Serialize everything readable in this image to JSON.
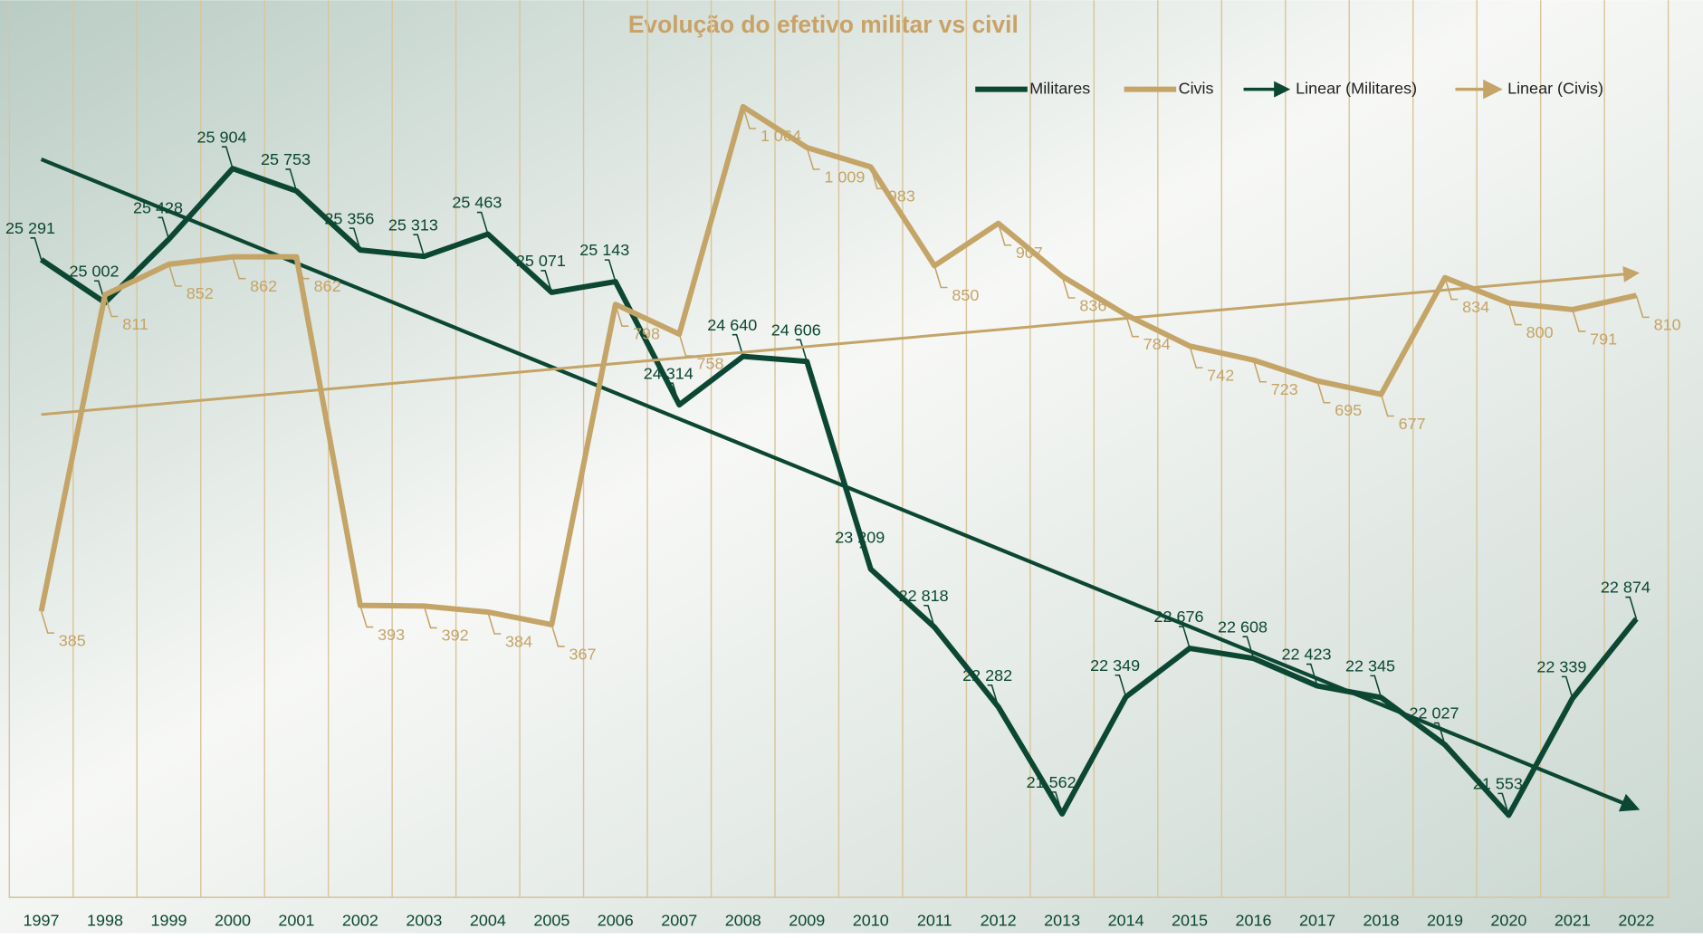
{
  "chart_data": {
    "type": "line",
    "title": "Evolução do efetivo militar vs civil",
    "categories": [
      "1997",
      "1998",
      "1999",
      "2000",
      "2001",
      "2002",
      "2003",
      "2004",
      "2005",
      "2006",
      "2007",
      "2008",
      "2009",
      "2010",
      "2011",
      "2012",
      "2013",
      "2014",
      "2015",
      "2016",
      "2017",
      "2018",
      "2019",
      "2020",
      "2021",
      "2022"
    ],
    "series": [
      {
        "name": "Militares",
        "color": "#0b4733",
        "axis": "y",
        "values": [
          25291,
          25002,
          25428,
          25904,
          25753,
          25356,
          25313,
          25463,
          25071,
          25143,
          24314,
          24640,
          24606,
          23209,
          22818,
          22282,
          21562,
          22349,
          22676,
          22608,
          22423,
          22345,
          22027,
          21553,
          22339,
          22874
        ],
        "value_labels": [
          "25 291",
          "25 002",
          "25 428",
          "25 904",
          "25 753",
          "25 356",
          "25 313",
          "25 463",
          "25 071",
          "25 143",
          "24 314",
          "24 640",
          "24 606",
          "23 209",
          "22 818",
          "22 282",
          "21 562",
          "22 349",
          "22 676",
          "22 608",
          "22 423",
          "22 345",
          "22 027",
          "21 553",
          "22 339",
          "22 874"
        ],
        "trendline": {
          "name": "Linear (Militares)"
        }
      },
      {
        "name": "Civis",
        "color": "#c4a467",
        "axis": "y2",
        "values": [
          385,
          811,
          852,
          862,
          862,
          393,
          392,
          384,
          367,
          798,
          758,
          1064,
          1009,
          983,
          850,
          907,
          836,
          784,
          742,
          723,
          695,
          677,
          834,
          800,
          791,
          810
        ],
        "value_labels": [
          "385",
          "811",
          "852",
          "862",
          "862",
          "393",
          "392",
          "384",
          "367",
          "798",
          "758",
          "1 064",
          "1 009",
          "983",
          "850",
          "907",
          "836",
          "784",
          "742",
          "723",
          "695",
          "677",
          "834",
          "800",
          "791",
          "810"
        ],
        "trendline": {
          "name": "Linear (Civis)"
        }
      }
    ],
    "ylim": [
      21000,
      27000
    ],
    "y2lim": [
      0,
      1200
    ],
    "legend": "top-right"
  }
}
